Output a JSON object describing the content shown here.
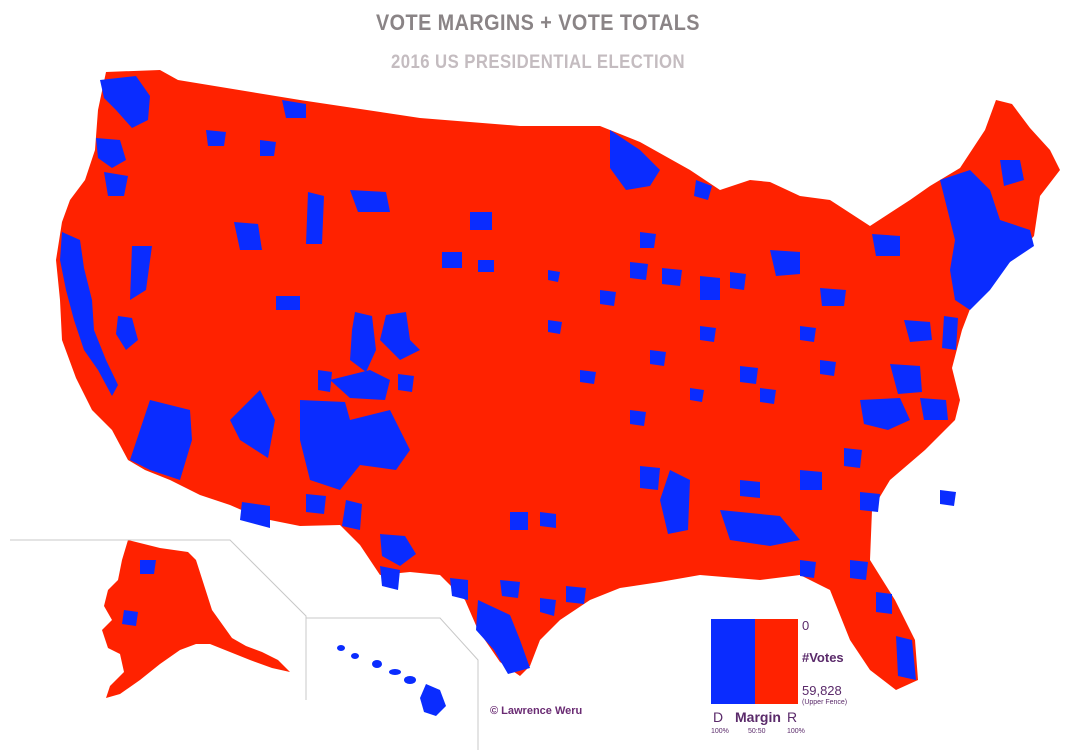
{
  "header": {
    "title": "VOTE MARGINS + VOTE TOTALS",
    "subtitle": "2016 US PRESIDENTIAL ELECTION"
  },
  "colors": {
    "democrat": "#0a2cff",
    "republican": "#ff2200",
    "inset_border": "#c8c8c8",
    "text_purple": "#6a2b73"
  },
  "legend": {
    "top_value": "0",
    "mid_label": "#Votes",
    "bottom_value": "59,828",
    "bottom_note": "(Upper Fence)",
    "axis_left": "D",
    "axis_mid": "Margin",
    "axis_right": "R",
    "axis_left_pct": "100%",
    "axis_mid_pct": "50:50",
    "axis_right_pct": "100%"
  },
  "credit": "© Lawrence Weru"
}
